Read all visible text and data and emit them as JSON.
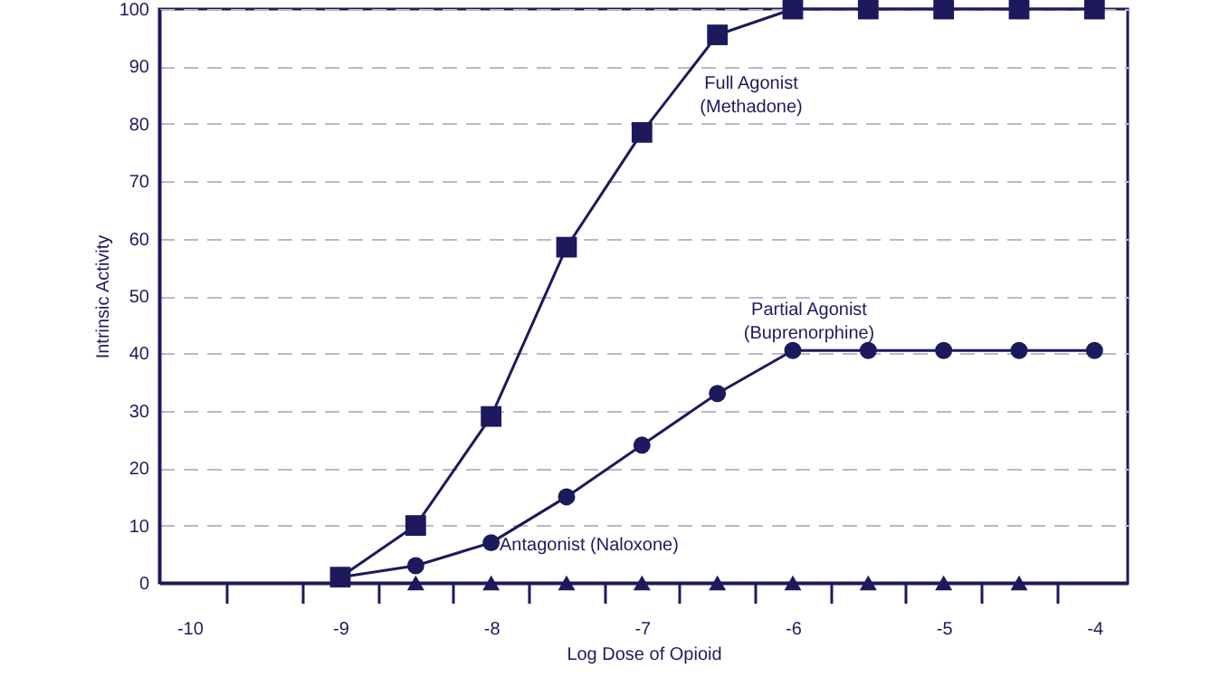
{
  "chart_data": {
    "type": "line",
    "xlabel": "Log Dose of Opioid",
    "ylabel": "Intrinsic Activity",
    "xlim": [
      -10.2,
      -3.78
    ],
    "ylim": [
      0,
      100
    ],
    "xticks": [
      -10,
      -9,
      -8,
      -7,
      -6,
      -5,
      -4,
      {
        "value": -9.75,
        "label": null
      },
      {
        "value": -9.25,
        "label": null
      },
      {
        "value": -8.75,
        "label": null
      },
      {
        "value": -8.25,
        "label": null
      },
      {
        "value": -7.75,
        "label": null
      },
      {
        "value": -7.25,
        "label": null
      },
      {
        "value": -6.75,
        "label": null
      },
      {
        "value": -6.25,
        "label": null
      },
      {
        "value": -5.75,
        "label": null
      },
      {
        "value": -5.25,
        "label": null
      },
      {
        "value": -4.75,
        "label": null
      },
      {
        "value": -4.25,
        "label": null
      }
    ],
    "yticks": [
      0,
      10,
      20,
      30,
      40,
      50,
      60,
      70,
      80,
      90,
      100
    ],
    "grid": "y",
    "line_style": "solid",
    "series": [
      {
        "marker": "square",
        "color": "#1c1a5c",
        "x": [
          -9,
          -8.5,
          -8,
          -7.5,
          -7,
          -6.5,
          -6,
          -5.5,
          -5,
          -4.5,
          -4
        ],
        "values": [
          1,
          10,
          29,
          58.5,
          78.5,
          95.5,
          100,
          100,
          100,
          100,
          100
        ]
      },
      {
        "marker": "circle",
        "color": "#1c1a5c",
        "x": [
          -9,
          -8.5,
          -8,
          -7.5,
          -7,
          -6.5,
          -6,
          -5.5,
          -5,
          -4.5,
          -4
        ],
        "values": [
          1,
          3,
          7,
          15,
          24,
          33,
          40.5,
          40.5,
          40.5,
          40.5,
          40.5
        ]
      },
      {
        "type": "scatter",
        "marker": "triangle",
        "color": "#1c1a5c",
        "x": [
          -8.5,
          -8,
          -7.5,
          -7,
          -6.5,
          -6,
          -5.5,
          -5,
          -4.5
        ],
        "values": [
          0,
          0,
          0,
          0,
          0,
          0,
          0,
          0,
          0
        ]
      }
    ],
    "annotations": [
      "Full Agonist\n(Methadone)",
      "Partial Agonist\n(Buprenorphine)",
      "Antagonist (Naloxone)"
    ]
  }
}
